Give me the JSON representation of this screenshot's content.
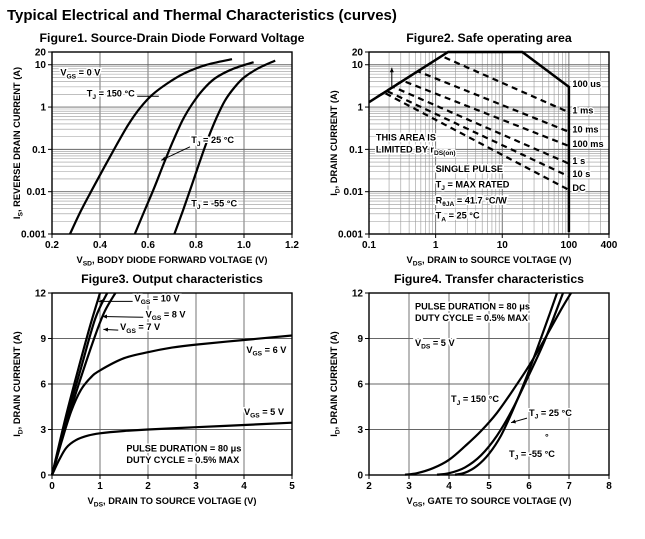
{
  "page": {
    "title": "Typical Electrical and Thermal Characteristics (curves)"
  },
  "chart_data": [
    {
      "id": "figure1",
      "type": "line",
      "title": "Figure1. Source-Drain Diode Forward Voltage",
      "x_axis": {
        "label": "V_{SD}, BODY DIODE FORWARD VOLTAGE (V)",
        "scale": "linear",
        "min": 0.2,
        "max": 1.2,
        "ticks": [
          0.2,
          0.4,
          0.6,
          0.8,
          1.0,
          1.2
        ],
        "tick_labels": [
          "0.2",
          "0.4",
          "0.6",
          "0.8",
          "1.0",
          "1.2"
        ]
      },
      "y_axis": {
        "label": "I_{S}, REVERSE DRAIN CURRENT (A)",
        "scale": "log",
        "min": 0.001,
        "max": 20,
        "ticks": [
          0.001,
          0.01,
          0.1,
          1,
          10,
          20
        ],
        "tick_labels": [
          "0.001",
          "0.01",
          "0.1",
          "1",
          "10",
          "20"
        ]
      },
      "series": [
        {
          "name": "TJ = 150 C",
          "style": "solid",
          "smooth": true,
          "points": [
            [
              0.275,
              0.001
            ],
            [
              0.32,
              0.0035
            ],
            [
              0.37,
              0.012
            ],
            [
              0.42,
              0.04
            ],
            [
              0.47,
              0.13
            ],
            [
              0.52,
              0.4
            ],
            [
              0.57,
              1.0
            ],
            [
              0.62,
              2.0
            ],
            [
              0.68,
              3.6
            ],
            [
              0.75,
              6.2
            ],
            [
              0.84,
              9.8
            ],
            [
              0.95,
              13.5
            ]
          ]
        },
        {
          "name": "TJ = 25 C",
          "style": "solid",
          "smooth": true,
          "points": [
            [
              0.545,
              0.001
            ],
            [
              0.585,
              0.0035
            ],
            [
              0.625,
              0.012
            ],
            [
              0.665,
              0.045
            ],
            [
              0.705,
              0.16
            ],
            [
              0.745,
              0.5
            ],
            [
              0.785,
              1.2
            ],
            [
              0.83,
              2.6
            ],
            [
              0.88,
              4.8
            ],
            [
              0.95,
              7.8
            ],
            [
              1.04,
              11.5
            ]
          ]
        },
        {
          "name": "TJ = -55 C",
          "style": "solid",
          "smooth": true,
          "points": [
            [
              0.71,
              0.001
            ],
            [
              0.745,
              0.0035
            ],
            [
              0.78,
              0.013
            ],
            [
              0.815,
              0.05
            ],
            [
              0.85,
              0.18
            ],
            [
              0.885,
              0.55
            ],
            [
              0.92,
              1.4
            ],
            [
              0.96,
              2.9
            ],
            [
              1.0,
              5.0
            ],
            [
              1.06,
              8.3
            ],
            [
              1.13,
              12.5
            ]
          ]
        }
      ],
      "annotations": [
        {
          "text": "V_{GS} = 0 V",
          "x": 0.235,
          "y": 5.5
        },
        {
          "text": "T_{J} = 150 °C",
          "x": 0.345,
          "y": 1.8
        },
        {
          "text": "T_{J} = 25 °C",
          "x": 0.78,
          "y": 0.14
        },
        {
          "text": "T_{J} = -55 °C",
          "x": 0.78,
          "y": 0.0045
        }
      ],
      "arrows": [
        {
          "from": [
            0.775,
            0.115
          ],
          "to": [
            0.655,
            0.055
          ],
          "head": true
        },
        {
          "from": [
            0.555,
            1.8
          ],
          "to": [
            0.645,
            1.8
          ],
          "head": false
        }
      ]
    },
    {
      "id": "figure2",
      "type": "line",
      "title": "Figure2. Safe operating area",
      "x_axis": {
        "label": "V_{DS}, DRAIN to SOURCE VOLTAGE (V)",
        "scale": "log",
        "min": 0.1,
        "max": 400,
        "ticks": [
          0.1,
          1,
          10,
          100,
          400
        ],
        "tick_labels": [
          "0.1",
          "1",
          "10",
          "100",
          "400"
        ]
      },
      "y_axis": {
        "label": "I_{D}, DRAIN CURRENT (A)",
        "scale": "log",
        "min": 0.001,
        "max": 20,
        "ticks": [
          0.001,
          0.01,
          0.1,
          1,
          10,
          20
        ],
        "tick_labels": [
          "0.001",
          "0.01",
          "0.1",
          "1",
          "10",
          "20"
        ]
      },
      "series": [
        {
          "name": "SOA limit 100 us",
          "style": "solid",
          "smooth": false,
          "points": [
            [
              0.1,
              1.3
            ],
            [
              1.54,
              20
            ],
            [
              20,
              20
            ],
            [
              100,
              3
            ],
            [
              100,
              0.0011
            ]
          ]
        },
        {
          "name": "1 ms",
          "style": "dashed",
          "smooth": false,
          "points": [
            [
              0.54,
              7
            ],
            [
              1.23,
              16
            ],
            [
              100,
              0.75
            ]
          ]
        },
        {
          "name": "10 ms",
          "style": "dashed",
          "smooth": false,
          "points": [
            [
              0.27,
              3.5
            ],
            [
              0.54,
              7
            ],
            [
              100,
              0.26
            ]
          ]
        },
        {
          "name": "100 ms",
          "style": "dashed",
          "smooth": false,
          "points": [
            [
              0.19,
              2.5
            ],
            [
              0.32,
              4.2
            ],
            [
              100,
              0.12
            ]
          ]
        },
        {
          "name": "1 s",
          "style": "dashed",
          "smooth": false,
          "points": [
            [
              0.15,
              1.95
            ],
            [
              0.23,
              3.0
            ],
            [
              100,
              0.046
            ]
          ]
        },
        {
          "name": "10 s",
          "style": "dashed",
          "smooth": false,
          "points": [
            [
              0.138,
              1.8
            ],
            [
              0.185,
              2.4
            ],
            [
              100,
              0.023
            ]
          ]
        },
        {
          "name": "DC",
          "style": "dashed",
          "smooth": false,
          "points": [
            [
              0.13,
              1.7
            ],
            [
              0.168,
              2.2
            ],
            [
              100,
              0.011
            ]
          ]
        }
      ],
      "annotations": [
        {
          "text": "THIS AREA IS",
          "x": 0.127,
          "y": 0.16
        },
        {
          "text": "LIMITED BY r_{DS(on)}",
          "x": 0.127,
          "y": 0.085
        },
        {
          "text": "SINGLE PULSE",
          "x": 1.0,
          "y": 0.029
        },
        {
          "text": "T_{J} = MAX RATED",
          "x": 1.0,
          "y": 0.0125
        },
        {
          "text": "R_{θJA} = 41.7 °C/W",
          "x": 1.0,
          "y": 0.0053
        },
        {
          "text": "T_{A} = 25 °C",
          "x": 1.0,
          "y": 0.0023
        },
        {
          "text": "100 us",
          "x": 113,
          "y": 3
        },
        {
          "text": "1 ms",
          "x": 113,
          "y": 0.7
        },
        {
          "text": "10 ms",
          "x": 113,
          "y": 0.25
        },
        {
          "text": "100 ms",
          "x": 113,
          "y": 0.115
        },
        {
          "text": "1 s",
          "x": 113,
          "y": 0.045
        },
        {
          "text": "10 s",
          "x": 113,
          "y": 0.022
        },
        {
          "text": "DC",
          "x": 113,
          "y": 0.0105
        }
      ],
      "arrows": [
        {
          "from": [
            0.22,
            2.9
          ],
          "to": [
            0.22,
            8.5
          ],
          "head": true
        }
      ]
    },
    {
      "id": "figure3",
      "type": "line",
      "title": "Figure3. Output characteristics",
      "x_axis": {
        "label": "V_{DS}, DRAIN TO SOURCE VOLTAGE (V)",
        "scale": "linear",
        "min": 0,
        "max": 5,
        "ticks": [
          0,
          1,
          2,
          3,
          4,
          5
        ],
        "tick_labels": [
          "0",
          "1",
          "2",
          "3",
          "4",
          "5"
        ]
      },
      "y_axis": {
        "label": "I_{D}, DRAIN CURRENT (A)",
        "scale": "linear",
        "min": 0,
        "max": 12,
        "ticks": [
          0,
          3,
          6,
          9,
          12
        ],
        "tick_labels": [
          "0",
          "3",
          "6",
          "9",
          "12"
        ]
      },
      "series": [
        {
          "name": "VGS = 10 V",
          "style": "solid",
          "smooth": true,
          "points": [
            [
              0,
              0
            ],
            [
              0.3,
              4.0
            ],
            [
              0.6,
              7.6
            ],
            [
              0.8,
              9.9
            ],
            [
              1.0,
              12
            ]
          ]
        },
        {
          "name": "VGS = 8 V",
          "style": "solid",
          "smooth": true,
          "points": [
            [
              0,
              0
            ],
            [
              0.3,
              3.7
            ],
            [
              0.6,
              7.0
            ],
            [
              0.9,
              10.3
            ],
            [
              1.15,
              12
            ]
          ]
        },
        {
          "name": "VGS = 7 V",
          "style": "solid",
          "smooth": true,
          "points": [
            [
              0,
              0
            ],
            [
              0.3,
              3.4
            ],
            [
              0.6,
              6.4
            ],
            [
              0.9,
              9.2
            ],
            [
              1.1,
              10.8
            ],
            [
              1.32,
              12
            ]
          ]
        },
        {
          "name": "VGS = 6 V",
          "style": "solid",
          "smooth": true,
          "points": [
            [
              0,
              0
            ],
            [
              0.2,
              2.2
            ],
            [
              0.4,
              4.2
            ],
            [
              0.6,
              5.6
            ],
            [
              0.8,
              6.4
            ],
            [
              1.0,
              6.9
            ],
            [
              1.5,
              7.7
            ],
            [
              2,
              8.1
            ],
            [
              2.5,
              8.4
            ],
            [
              3,
              8.6
            ],
            [
              4,
              8.9
            ],
            [
              5,
              9.2
            ]
          ]
        },
        {
          "name": "VGS = 5 V",
          "style": "solid",
          "smooth": true,
          "points": [
            [
              0,
              0
            ],
            [
              0.15,
              1.0
            ],
            [
              0.3,
              1.8
            ],
            [
              0.5,
              2.3
            ],
            [
              0.75,
              2.6
            ],
            [
              1,
              2.75
            ],
            [
              1.5,
              2.9
            ],
            [
              2,
              3.0
            ],
            [
              3,
              3.15
            ],
            [
              4,
              3.3
            ],
            [
              5,
              3.45
            ]
          ]
        }
      ],
      "annotations": [
        {
          "text": "V_{GS} = 10 V",
          "x": 1.72,
          "y": 11.45
        },
        {
          "text": "V_{GS} = 8 V",
          "x": 1.95,
          "y": 10.4
        },
        {
          "text": "V_{GS} = 7 V",
          "x": 1.42,
          "y": 9.55
        },
        {
          "text": "V_{GS} = 6 V",
          "x": 4.05,
          "y": 8.05
        },
        {
          "text": "V_{GS} = 5 V",
          "x": 4.0,
          "y": 3.95
        },
        {
          "text": "PULSE DURATION = 80 μs",
          "x": 1.55,
          "y": 1.55
        },
        {
          "text": "DUTY CYCLE = 0.5% MAX",
          "x": 1.55,
          "y": 0.8
        }
      ],
      "arrows": [
        {
          "from": [
            1.68,
            11.45
          ],
          "to": [
            0.97,
            11.45
          ],
          "head": true
        },
        {
          "from": [
            1.9,
            10.4
          ],
          "to": [
            1.05,
            10.45
          ],
          "head": true
        },
        {
          "from": [
            1.38,
            9.55
          ],
          "to": [
            1.07,
            9.6
          ],
          "head": true
        }
      ]
    },
    {
      "id": "figure4",
      "type": "line",
      "title": "Figure4. Transfer characteristics",
      "x_axis": {
        "label": "V_{GS}, GATE TO SOURCE VOLTAGE (V)",
        "scale": "linear",
        "min": 2,
        "max": 8,
        "ticks": [
          2,
          3,
          4,
          5,
          6,
          7,
          8
        ],
        "tick_labels": [
          "2",
          "3",
          "4",
          "5",
          "6",
          "7",
          "8"
        ]
      },
      "y_axis": {
        "label": "I_{D}, DRAIN CURRENT (A)",
        "scale": "linear",
        "min": 0,
        "max": 12,
        "ticks": [
          0,
          3,
          6,
          9,
          12
        ],
        "tick_labels": [
          "0",
          "3",
          "6",
          "9",
          "12"
        ]
      },
      "series": [
        {
          "name": "TJ = 150 C",
          "style": "solid",
          "smooth": true,
          "points": [
            [
              2.9,
              0.02
            ],
            [
              3.2,
              0.12
            ],
            [
              3.6,
              0.45
            ],
            [
              4.0,
              1.0
            ],
            [
              4.4,
              1.9
            ],
            [
              4.8,
              2.9
            ],
            [
              5.2,
              4.1
            ],
            [
              5.6,
              5.6
            ],
            [
              6.0,
              7.2
            ],
            [
              6.4,
              9.0
            ],
            [
              6.8,
              10.9
            ],
            [
              7.05,
              12
            ]
          ]
        },
        {
          "name": "TJ = 25 C",
          "style": "solid",
          "smooth": true,
          "points": [
            [
              3.7,
              0.02
            ],
            [
              4.0,
              0.12
            ],
            [
              4.4,
              0.5
            ],
            [
              4.8,
              1.3
            ],
            [
              5.2,
              2.6
            ],
            [
              5.6,
              4.4
            ],
            [
              6.0,
              6.6
            ],
            [
              6.35,
              8.6
            ],
            [
              6.65,
              10.6
            ],
            [
              6.85,
              12
            ]
          ]
        },
        {
          "name": "TJ = -55 C",
          "style": "solid",
          "smooth": true,
          "points": [
            [
              4.15,
              0.02
            ],
            [
              4.4,
              0.15
            ],
            [
              4.7,
              0.6
            ],
            [
              5.0,
              1.4
            ],
            [
              5.3,
              2.6
            ],
            [
              5.6,
              4.3
            ],
            [
              5.9,
              6.2
            ],
            [
              6.2,
              8.3
            ],
            [
              6.5,
              10.5
            ],
            [
              6.7,
              12
            ]
          ]
        }
      ],
      "annotations": [
        {
          "text": "PULSE DURATION = 80 μs",
          "x": 3.15,
          "y": 10.9
        },
        {
          "text": "DUTY CYCLE = 0.5% MAX",
          "x": 3.15,
          "y": 10.15
        },
        {
          "text": "V_{DS} = 5 V",
          "x": 3.15,
          "y": 8.5
        },
        {
          "text": "T_{J} = 150 °C",
          "x": 4.05,
          "y": 4.8
        },
        {
          "text": "T_{J} = 25 °C",
          "x": 6.0,
          "y": 3.9
        },
        {
          "text": "T_{J} = -55 °C",
          "x": 5.5,
          "y": 1.2
        },
        {
          "text": "°",
          "x": 6.4,
          "y": 2.3
        }
      ],
      "arrows": [
        {
          "from": [
            5.95,
            3.75
          ],
          "to": [
            5.55,
            3.45
          ],
          "head": true
        }
      ]
    }
  ],
  "style": {
    "ink": "#000000",
    "grid_minor": "#999999",
    "grid_major": "#666666",
    "background": "#ffffff"
  }
}
